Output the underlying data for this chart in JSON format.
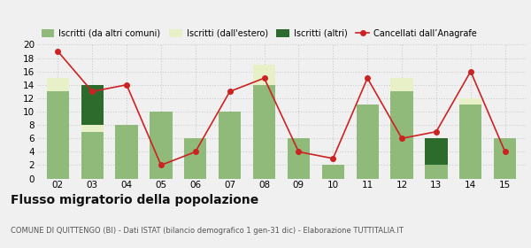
{
  "years": [
    "02",
    "03",
    "04",
    "05",
    "06",
    "07",
    "08",
    "09",
    "10",
    "11",
    "12",
    "13",
    "14",
    "15"
  ],
  "iscritti_comuni": [
    13,
    7,
    8,
    10,
    6,
    10,
    14,
    6,
    2,
    11,
    13,
    2,
    11,
    6
  ],
  "iscritti_estero": [
    2,
    1,
    0,
    0,
    0,
    0,
    3,
    0,
    0,
    0,
    2,
    0,
    1,
    0
  ],
  "iscritti_altri": [
    0,
    6,
    0,
    0,
    0,
    0,
    0,
    0,
    0,
    0,
    0,
    4,
    0,
    0
  ],
  "cancellati": [
    19,
    13,
    14,
    2,
    4,
    13,
    15,
    4,
    3,
    15,
    6,
    7,
    16,
    4
  ],
  "color_comuni": "#8fba7a",
  "color_estero": "#e8f0c8",
  "color_altri": "#2d6b2d",
  "color_cancellati": "#cc2222",
  "ylim": [
    0,
    20
  ],
  "yticks": [
    0,
    2,
    4,
    6,
    8,
    10,
    12,
    14,
    16,
    18,
    20
  ],
  "title": "Flusso migratorio della popolazione",
  "subtitle": "COMUNE DI QUITTENGO (BI) - Dati ISTAT (bilancio demografico 1 gen-31 dic) - Elaborazione TUTTITALIA.IT",
  "legend_labels": [
    "Iscritti (da altri comuni)",
    "Iscritti (dall'estero)",
    "Iscritti (altri)",
    "Cancellati dall’Anagrafe"
  ],
  "grid_color": "#cccccc",
  "bg_color": "#f0f0f0"
}
